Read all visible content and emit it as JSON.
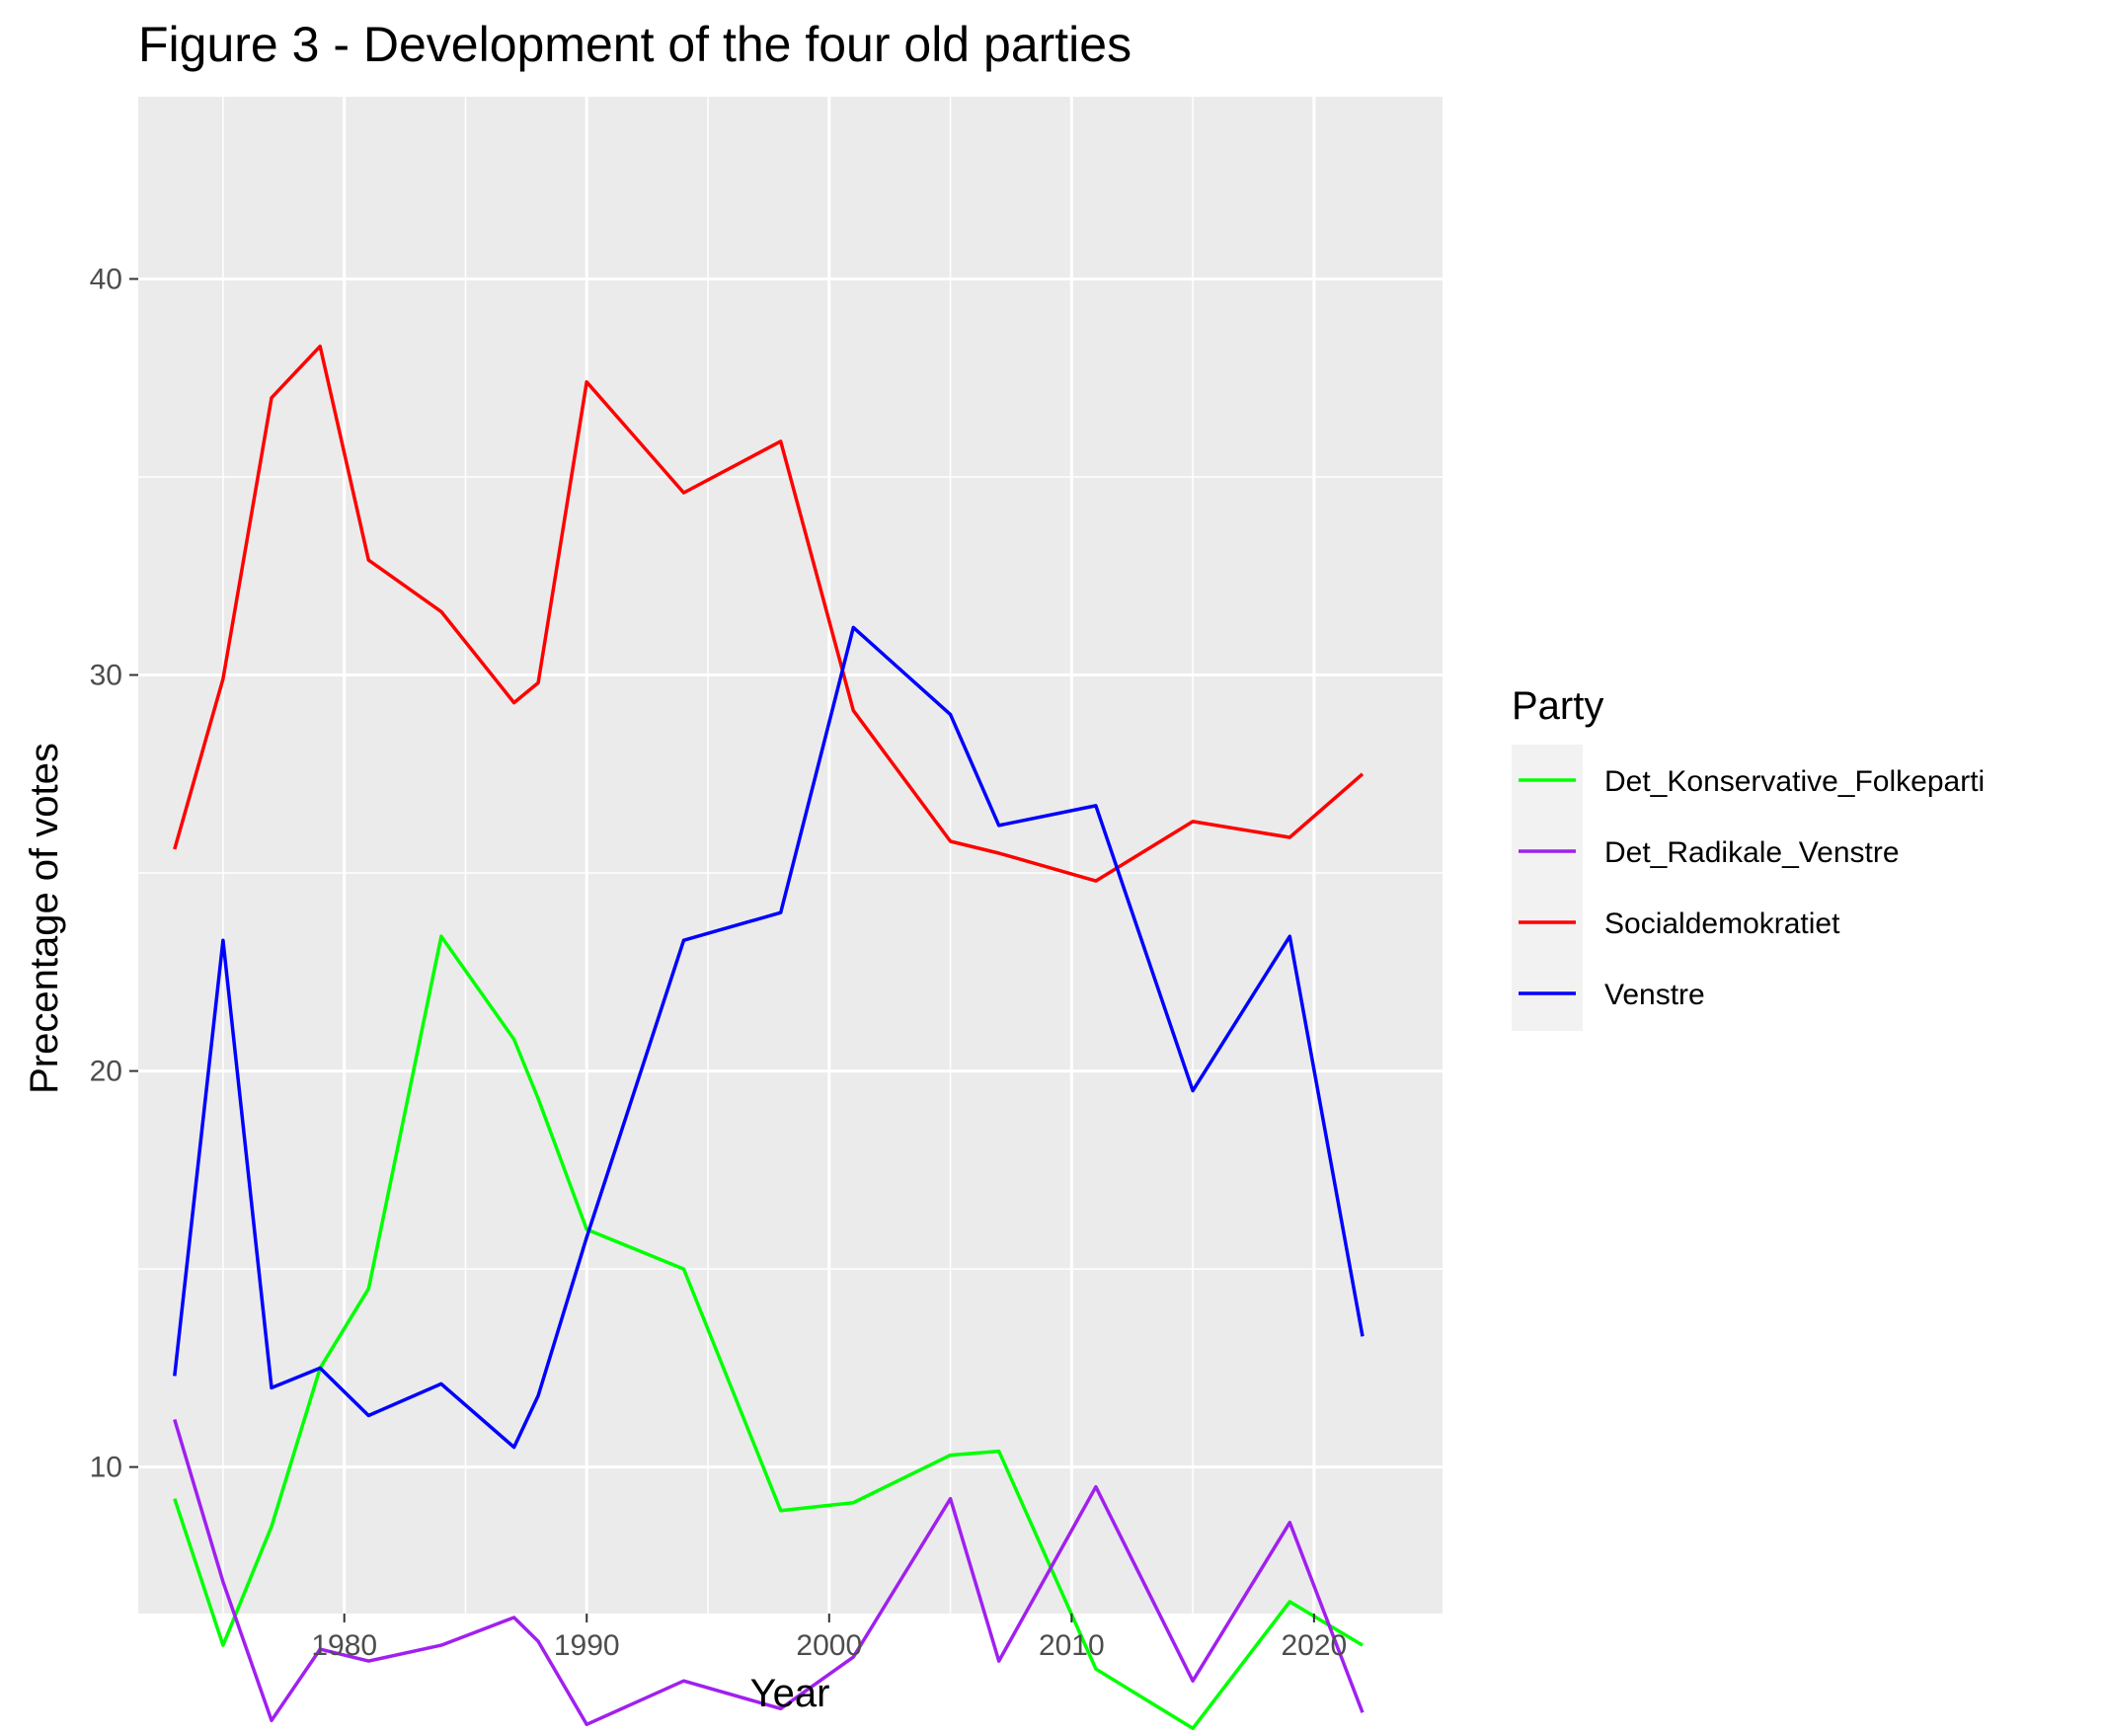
{
  "chart_data": {
    "type": "line",
    "title": "Figure 3 - Development of the four old parties",
    "xlabel": "Year",
    "ylabel": "Precentage of votes",
    "xlim": [
      1971.5,
      2025.3
    ],
    "ylim": [
      6.3,
      44.6
    ],
    "x_ticks": [
      1980,
      1990,
      2000,
      2010,
      2020
    ],
    "y_ticks": [
      10,
      20,
      30,
      40
    ],
    "grid": true,
    "legend": {
      "title": "Party",
      "position": "right"
    },
    "x": [
      1973,
      1975,
      1977,
      1979,
      1981,
      1984,
      1987,
      1988,
      1990,
      1994,
      1998,
      2001,
      2005,
      2007,
      2011,
      2015,
      2019,
      2022
    ],
    "series": [
      {
        "name": "Det_Konservative_Folkeparti",
        "color": "#00ff00",
        "values": [
          9.2,
          5.5,
          8.5,
          12.5,
          14.5,
          23.4,
          20.8,
          19.3,
          16.0,
          15.0,
          8.9,
          9.1,
          10.3,
          10.4,
          4.9,
          3.4,
          6.6,
          5.5
        ]
      },
      {
        "name": "Det_Radikale_Venstre",
        "color": "#a020f0",
        "values": [
          11.2,
          7.1,
          3.6,
          5.4,
          5.1,
          5.5,
          6.2,
          5.6,
          3.5,
          4.6,
          3.9,
          5.2,
          9.2,
          5.1,
          9.5,
          4.6,
          8.6,
          3.8
        ]
      },
      {
        "name": "Socialdemokratiet",
        "color": "#ff0000",
        "values": [
          25.6,
          29.9,
          37.0,
          38.3,
          32.9,
          31.6,
          29.3,
          29.8,
          37.4,
          34.6,
          35.9,
          29.1,
          25.8,
          25.5,
          24.8,
          26.3,
          25.9,
          27.5
        ]
      },
      {
        "name": "Venstre",
        "color": "#0000ff",
        "values": [
          12.3,
          23.3,
          12.0,
          12.5,
          11.3,
          12.1,
          10.5,
          11.8,
          15.8,
          23.3,
          24.0,
          31.2,
          29.0,
          26.2,
          26.7,
          19.5,
          23.4,
          13.3
        ]
      }
    ]
  }
}
